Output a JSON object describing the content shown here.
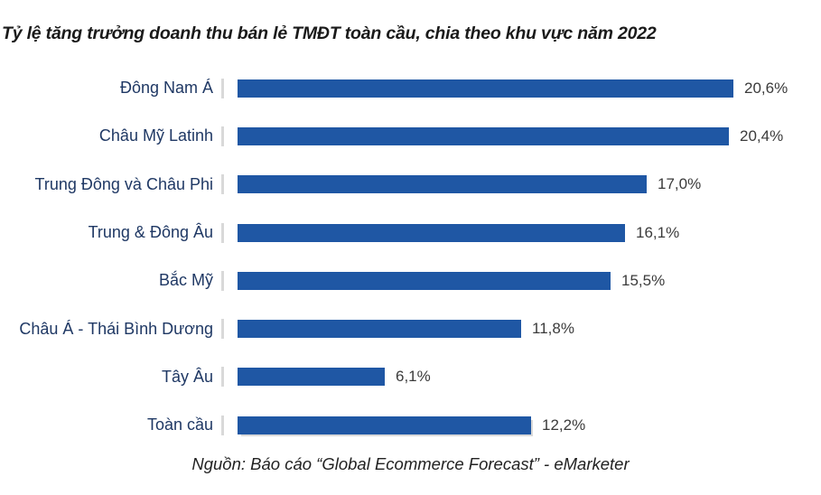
{
  "chart_data": {
    "type": "bar",
    "orientation": "horizontal",
    "title": "Tỷ lệ tăng trưởng doanh thu bán lẻ TMĐT toàn cầu, chia theo khu vực năm 2022",
    "source": "Nguồn: Báo cáo “Global Ecommerce Forecast” - eMarketer",
    "categories": [
      "Đông Nam Á",
      "Châu Mỹ Latinh",
      "Trung Đông và Châu Phi",
      "Trung & Đông Âu",
      "Bắc Mỹ",
      "Châu Á - Thái Bình Dương",
      "Tây Âu",
      "Toàn cầu"
    ],
    "values": [
      20.6,
      20.4,
      17.0,
      16.1,
      15.5,
      11.8,
      6.1,
      12.2
    ],
    "value_labels": [
      "20,6%",
      "20,4%",
      "17,0%",
      "16,1%",
      "15,5%",
      "11,8%",
      "6,1%",
      "12,2%"
    ],
    "unit": "%",
    "xlim": [
      0,
      24
    ],
    "grid": false,
    "legend": false,
    "axis_labels_visible": false,
    "bar_color": "#1F57A4",
    "category_label_color": "#1F3864",
    "value_label_color": "#3b3b3b",
    "tick_color": "#D9D9D9"
  }
}
